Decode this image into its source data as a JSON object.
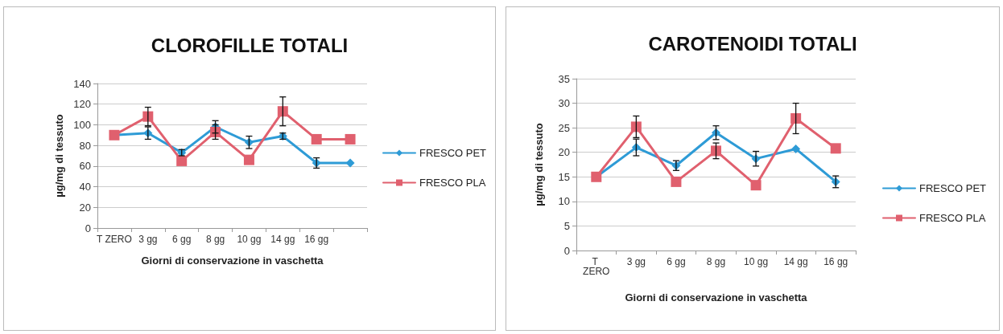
{
  "chart_data": [
    {
      "type": "line",
      "title": "CLOROFILLE TOTALI",
      "xlabel": "Giorni di conservazione in vaschetta",
      "ylabel": "µg/mg di tessuto",
      "categories": [
        "T ZERO",
        "3 gg",
        "6 gg",
        "8 gg",
        "10 gg",
        "14 gg",
        "16 gg",
        null
      ],
      "ylim": [
        0,
        140
      ],
      "yticks": [
        0,
        20,
        40,
        60,
        80,
        100,
        120,
        140
      ],
      "grid": "y",
      "legend": "right",
      "series": [
        {
          "name": "FRESCO PET",
          "color": "#2e9bd6",
          "marker": "diamond",
          "values": [
            90,
            92,
            73,
            98,
            83,
            89,
            63,
            63
          ],
          "errors": [
            null,
            6,
            3,
            6,
            6,
            3,
            5,
            null
          ]
        },
        {
          "name": "FRESCO PLA",
          "color": "#e0606e",
          "marker": "square",
          "values": [
            90,
            108,
            65,
            93,
            66,
            113,
            86,
            86
          ],
          "errors": [
            null,
            9,
            null,
            7,
            null,
            14,
            null,
            null
          ]
        }
      ]
    },
    {
      "type": "line",
      "title": "CAROTENOIDI TOTALI",
      "xlabel": "Giorni di conservazione in vaschetta",
      "ylabel": "µg/mg di tessuto",
      "categories": [
        "T ZERO",
        "3 gg",
        "6 gg",
        "8 gg",
        "10 gg",
        "14 gg",
        "16 gg"
      ],
      "ylim": [
        0,
        35
      ],
      "yticks": [
        0,
        5,
        10,
        15,
        20,
        25,
        30,
        35
      ],
      "grid": "y",
      "legend": "right",
      "series": [
        {
          "name": "FRESCO PET",
          "color": "#2e9bd6",
          "marker": "diamond",
          "values": [
            15,
            21,
            17.3,
            24,
            18.7,
            20.7,
            14
          ],
          "errors": [
            null,
            1.7,
            1,
            1.4,
            1.5,
            null,
            1.2
          ]
        },
        {
          "name": "FRESCO PLA",
          "color": "#e0606e",
          "marker": "square",
          "values": [
            15,
            25.2,
            14,
            20.3,
            13.3,
            26.9,
            20.8
          ],
          "errors": [
            null,
            2.2,
            null,
            1.6,
            null,
            3.1,
            null
          ]
        }
      ]
    }
  ]
}
